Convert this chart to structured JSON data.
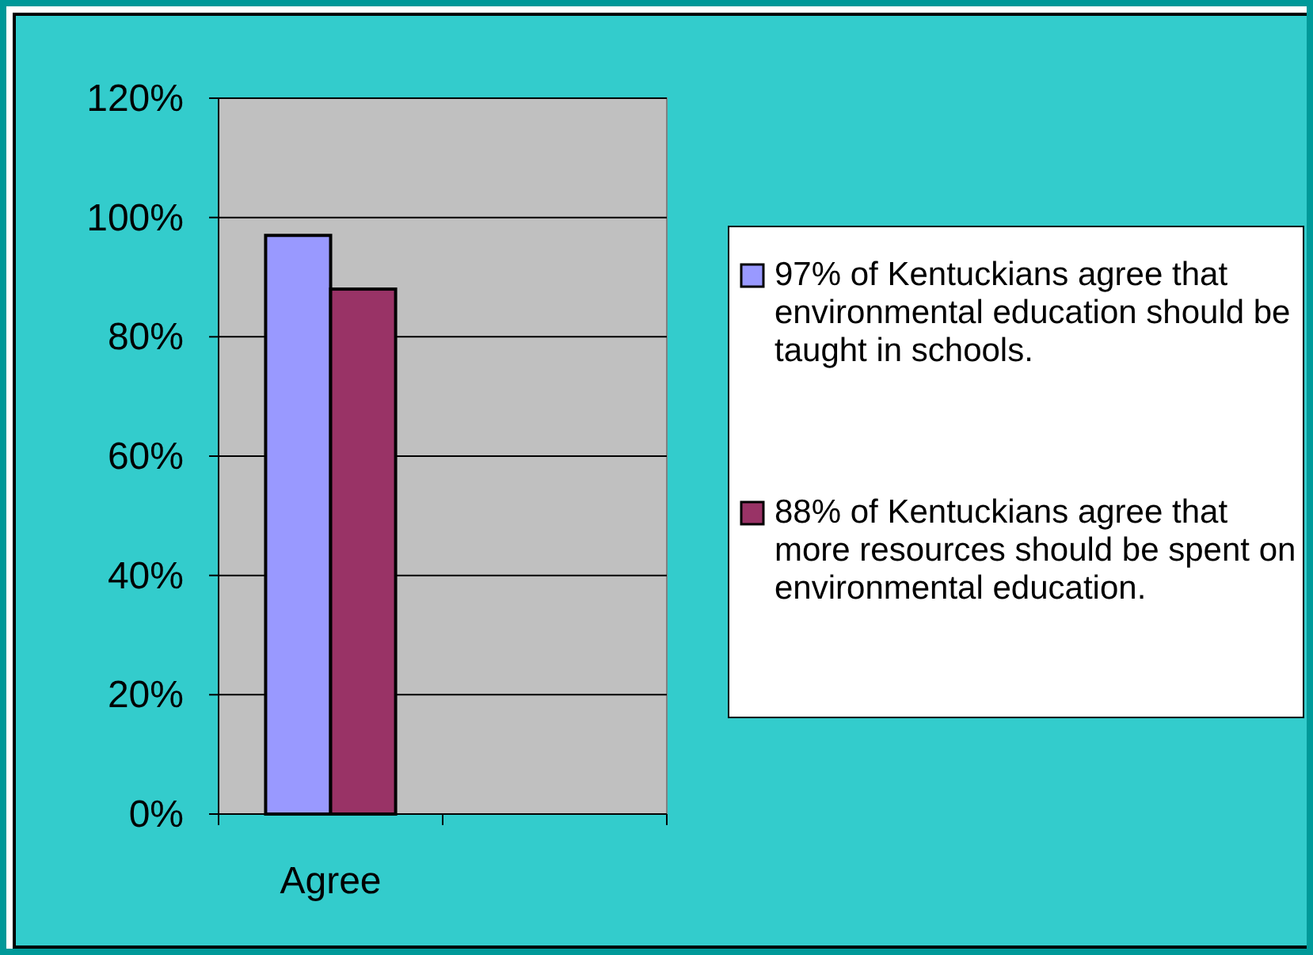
{
  "chart_data": {
    "type": "bar",
    "categories": [
      "Agree",
      null
    ],
    "series": [
      {
        "name": "97% of Kentuckians agree that environmental education should be taught in schools.",
        "color": "#9999ff",
        "values": [
          97,
          null
        ]
      },
      {
        "name": "88% of Kentuckians agree that more resources should be spent on environmental education.",
        "color": "#993366",
        "values": [
          88,
          null
        ]
      }
    ],
    "ylim": [
      0,
      120
    ],
    "yticks": [
      {
        "value": 0,
        "label": "0%"
      },
      {
        "value": 20,
        "label": "20%"
      },
      {
        "value": 40,
        "label": "40%"
      },
      {
        "value": 60,
        "label": "60%"
      },
      {
        "value": 80,
        "label": "80%"
      },
      {
        "value": 100,
        "label": "100%"
      },
      {
        "value": 120,
        "label": "120%"
      }
    ],
    "grid": "y",
    "legend": "right"
  }
}
